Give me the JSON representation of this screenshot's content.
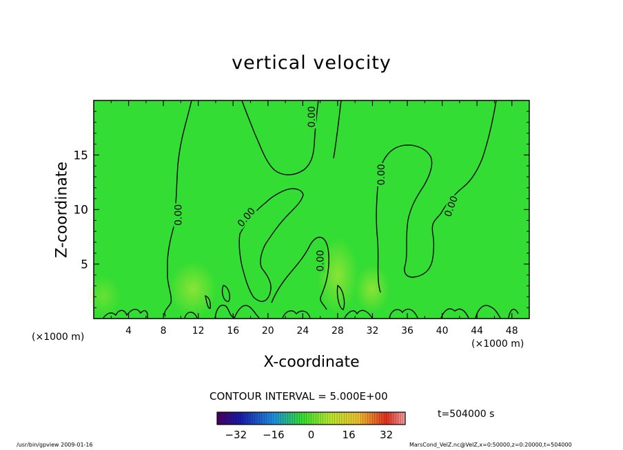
{
  "chart_data": {
    "type": "heatmap",
    "title": "vertical velocity",
    "xlabel": "X-coordinate",
    "ylabel": "Z-coordinate",
    "x_unit": "(×1000 m)",
    "xlim": [
      0,
      50
    ],
    "ylim": [
      0,
      20
    ],
    "x_ticks": [
      4,
      8,
      12,
      16,
      20,
      24,
      28,
      32,
      36,
      40,
      44,
      48
    ],
    "y_ticks": [
      5,
      10,
      15
    ],
    "contour_label": "0.00",
    "contour_interval_text": "CONTOUR INTERVAL = 5.000E+00",
    "time_text": "t=504000 s",
    "colorbar_ticks": [
      -32,
      -16,
      0,
      16,
      32
    ],
    "colorbar_range": [
      -40,
      40
    ],
    "contour_label_positions": [
      {
        "x": 25.0,
        "y": 18.5,
        "angle": -90
      },
      {
        "x": 9.7,
        "y": 9.5,
        "angle": -90
      },
      {
        "x": 17.5,
        "y": 9.3,
        "angle": -50
      },
      {
        "x": 26.0,
        "y": 5.3,
        "angle": -90
      },
      {
        "x": 33.0,
        "y": 13.2,
        "angle": -90
      },
      {
        "x": 41.0,
        "y": 10.3,
        "angle": -70
      }
    ],
    "colors": {
      "field": "#33dd33",
      "contour": "#000000"
    }
  },
  "footer": {
    "left": "/usr/bin/gpview   2009-01-16",
    "right": "MarsCond_VelZ.nc@VelZ,x=0:50000,z=0:20000,t=504000"
  }
}
